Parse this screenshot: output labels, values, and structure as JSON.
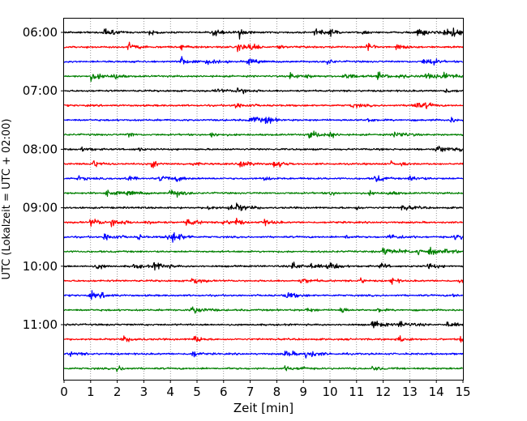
{
  "chart_data": {
    "type": "line",
    "subtype": "helicorder",
    "xlabel": "Zeit  [min]",
    "ylabel": "UTC (Lokalzeit = UTC + 02:00)",
    "xlim": [
      0,
      15
    ],
    "x_ticks": [
      "0",
      "1",
      "2",
      "3",
      "4",
      "5",
      "6",
      "7",
      "8",
      "9",
      "10",
      "11",
      "12",
      "13",
      "14",
      "15"
    ],
    "y_tick_labels": [
      "06:00",
      "07:00",
      "08:00",
      "09:00",
      "10:00",
      "11:00"
    ],
    "grid": "vertical dotted lines at every minute",
    "trace_colors": [
      "#000000",
      "#ff0000",
      "#0000ff",
      "#008000"
    ],
    "row_start_times": [
      "06:00",
      "06:15",
      "06:30",
      "06:45",
      "07:00",
      "07:15",
      "07:30",
      "07:45",
      "08:00",
      "08:15",
      "08:30",
      "08:45",
      "09:00",
      "09:15",
      "09:30",
      "09:45",
      "10:00",
      "10:15",
      "10:30",
      "10:45",
      "11:00",
      "11:15",
      "11:30",
      "11:45"
    ],
    "events": [
      [
        1.5,
        3.2,
        5.6,
        6.6,
        9.4,
        10.0,
        11.2,
        13.3,
        14.3,
        14.6
      ],
      [
        2.4,
        4.4,
        6.5,
        7.0,
        8.0,
        11.4,
        12.5
      ],
      [
        4.4,
        5.3,
        6.9,
        9.9,
        13.5,
        13.8
      ],
      [
        1.0,
        1.9,
        8.5,
        9.1,
        10.5,
        11.8,
        12.6,
        13.6,
        14.2
      ],
      [
        5.7,
        6.5,
        14.3
      ],
      [
        6.4,
        10.8,
        13.1,
        13.6
      ],
      [
        7.0,
        7.6,
        11.4,
        14.5
      ],
      [
        2.4,
        5.5,
        9.2,
        10.0,
        12.4
      ],
      [
        0.6,
        2.8,
        14.0,
        14.9
      ],
      [
        1.0,
        3.3,
        4.7,
        6.6,
        7.9,
        12.3,
        12.6
      ],
      [
        0.5,
        2.3,
        3.6,
        4.2,
        7.5,
        11.7,
        13.0
      ],
      [
        1.6,
        2.4,
        4.0,
        4.2,
        10.0,
        11.5,
        12.2
      ],
      [
        5.4,
        6.2,
        6.5,
        11.0,
        12.7
      ],
      [
        1.0,
        1.8,
        3.1,
        4.6,
        5.9,
        6.4,
        7.4
      ],
      [
        1.5,
        2.8,
        3.8,
        4.1,
        10.6,
        12.2,
        14.7
      ],
      [
        12.0,
        12.6,
        13.3,
        13.7,
        14.3
      ],
      [
        1.2,
        2.6,
        3.4,
        8.6,
        9.3,
        9.9,
        11.9,
        13.7
      ],
      [
        4.8,
        8.9,
        11.1,
        12.3,
        14.9
      ],
      [
        1.0,
        1.4,
        8.3,
        14.6
      ],
      [
        4.8,
        9.1,
        10.4,
        11.8
      ],
      [
        11.6,
        12.6,
        14.4
      ],
      [
        2.2,
        4.9,
        12.6,
        14.9
      ],
      [
        0.2,
        4.8,
        8.3,
        9.1
      ],
      [
        2.0,
        8.3,
        8.9,
        11.6
      ]
    ]
  }
}
